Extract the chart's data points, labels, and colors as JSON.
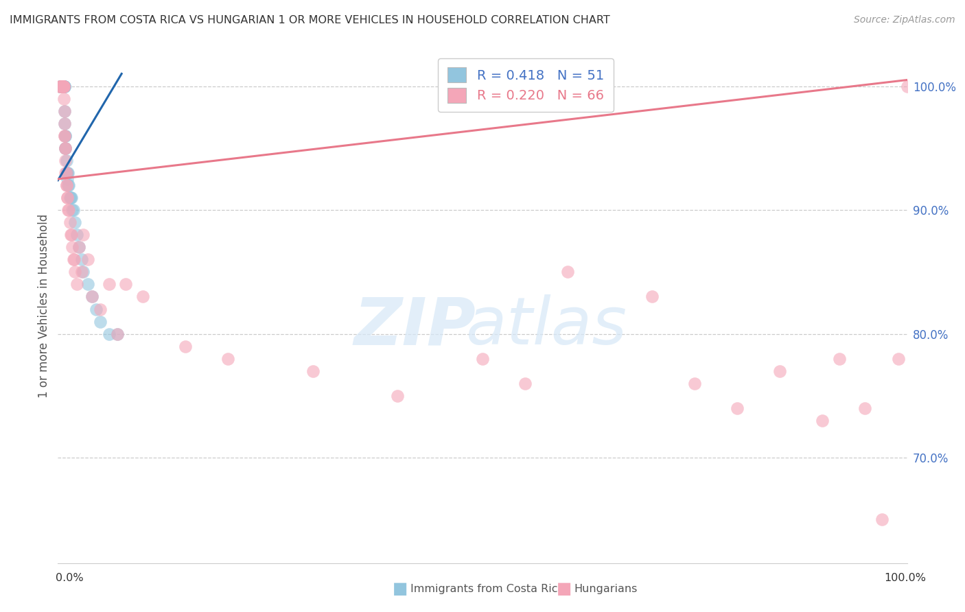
{
  "title": "IMMIGRANTS FROM COSTA RICA VS HUNGARIAN 1 OR MORE VEHICLES IN HOUSEHOLD CORRELATION CHART",
  "source": "Source: ZipAtlas.com",
  "ylabel": "1 or more Vehicles in Household",
  "legend_blue_R": "0.418",
  "legend_blue_N": "51",
  "legend_pink_R": "0.220",
  "legend_pink_N": "66",
  "blue_color": "#92c5de",
  "pink_color": "#f4a6b8",
  "blue_line_color": "#2166ac",
  "pink_line_color": "#e8788a",
  "ytick_vals": [
    0.7,
    0.8,
    0.9,
    1.0
  ],
  "ytick_labels": [
    "70.0%",
    "80.0%",
    "90.0%",
    "100.0%"
  ],
  "xlim": [
    0.0,
    1.0
  ],
  "ylim": [
    0.615,
    1.03
  ],
  "blue_line_x": [
    0.0,
    0.075
  ],
  "blue_line_y": [
    0.924,
    1.01
  ],
  "pink_line_x": [
    0.0,
    1.0
  ],
  "pink_line_y": [
    0.925,
    1.005
  ],
  "cr_x": [
    0.002,
    0.003,
    0.003,
    0.004,
    0.004,
    0.005,
    0.005,
    0.005,
    0.006,
    0.006,
    0.006,
    0.006,
    0.007,
    0.007,
    0.007,
    0.007,
    0.007,
    0.008,
    0.008,
    0.008,
    0.008,
    0.008,
    0.009,
    0.009,
    0.009,
    0.009,
    0.01,
    0.01,
    0.01,
    0.01,
    0.011,
    0.011,
    0.012,
    0.012,
    0.013,
    0.014,
    0.015,
    0.016,
    0.017,
    0.018,
    0.02,
    0.022,
    0.025,
    0.028,
    0.03,
    0.035,
    0.04,
    0.045,
    0.05,
    0.06,
    0.07
  ],
  "cr_y": [
    1.0,
    1.0,
    1.0,
    1.0,
    1.0,
    1.0,
    1.0,
    1.0,
    1.0,
    1.0,
    1.0,
    1.0,
    1.0,
    1.0,
    1.0,
    1.0,
    1.0,
    1.0,
    1.0,
    1.0,
    0.98,
    0.97,
    0.96,
    0.96,
    0.95,
    0.95,
    0.94,
    0.93,
    0.93,
    0.93,
    0.93,
    0.925,
    0.93,
    0.92,
    0.92,
    0.91,
    0.91,
    0.91,
    0.9,
    0.9,
    0.89,
    0.88,
    0.87,
    0.86,
    0.85,
    0.84,
    0.83,
    0.82,
    0.81,
    0.8,
    0.8
  ],
  "hu_x": [
    0.002,
    0.003,
    0.003,
    0.004,
    0.004,
    0.005,
    0.005,
    0.005,
    0.006,
    0.006,
    0.006,
    0.006,
    0.007,
    0.007,
    0.007,
    0.007,
    0.008,
    0.008,
    0.008,
    0.008,
    0.009,
    0.009,
    0.009,
    0.009,
    0.01,
    0.01,
    0.01,
    0.011,
    0.011,
    0.012,
    0.013,
    0.014,
    0.015,
    0.016,
    0.017,
    0.018,
    0.019,
    0.02,
    0.022,
    0.025,
    0.028,
    0.03,
    0.035,
    0.04,
    0.05,
    0.06,
    0.07,
    0.08,
    0.1,
    0.15,
    0.2,
    0.3,
    0.4,
    0.5,
    0.55,
    0.6,
    0.7,
    0.75,
    0.8,
    0.85,
    0.9,
    0.92,
    0.95,
    0.97,
    0.99,
    1.0
  ],
  "hu_y": [
    1.0,
    1.0,
    1.0,
    1.0,
    1.0,
    1.0,
    1.0,
    1.0,
    1.0,
    1.0,
    1.0,
    1.0,
    1.0,
    1.0,
    1.0,
    0.99,
    0.98,
    0.97,
    0.96,
    0.96,
    0.95,
    0.95,
    0.94,
    0.93,
    0.93,
    0.92,
    0.92,
    0.91,
    0.91,
    0.9,
    0.9,
    0.89,
    0.88,
    0.88,
    0.87,
    0.86,
    0.86,
    0.85,
    0.84,
    0.87,
    0.85,
    0.88,
    0.86,
    0.83,
    0.82,
    0.84,
    0.8,
    0.84,
    0.83,
    0.79,
    0.78,
    0.77,
    0.75,
    0.78,
    0.76,
    0.85,
    0.83,
    0.76,
    0.74,
    0.77,
    0.73,
    0.78,
    0.74,
    0.65,
    0.78,
    1.0
  ]
}
